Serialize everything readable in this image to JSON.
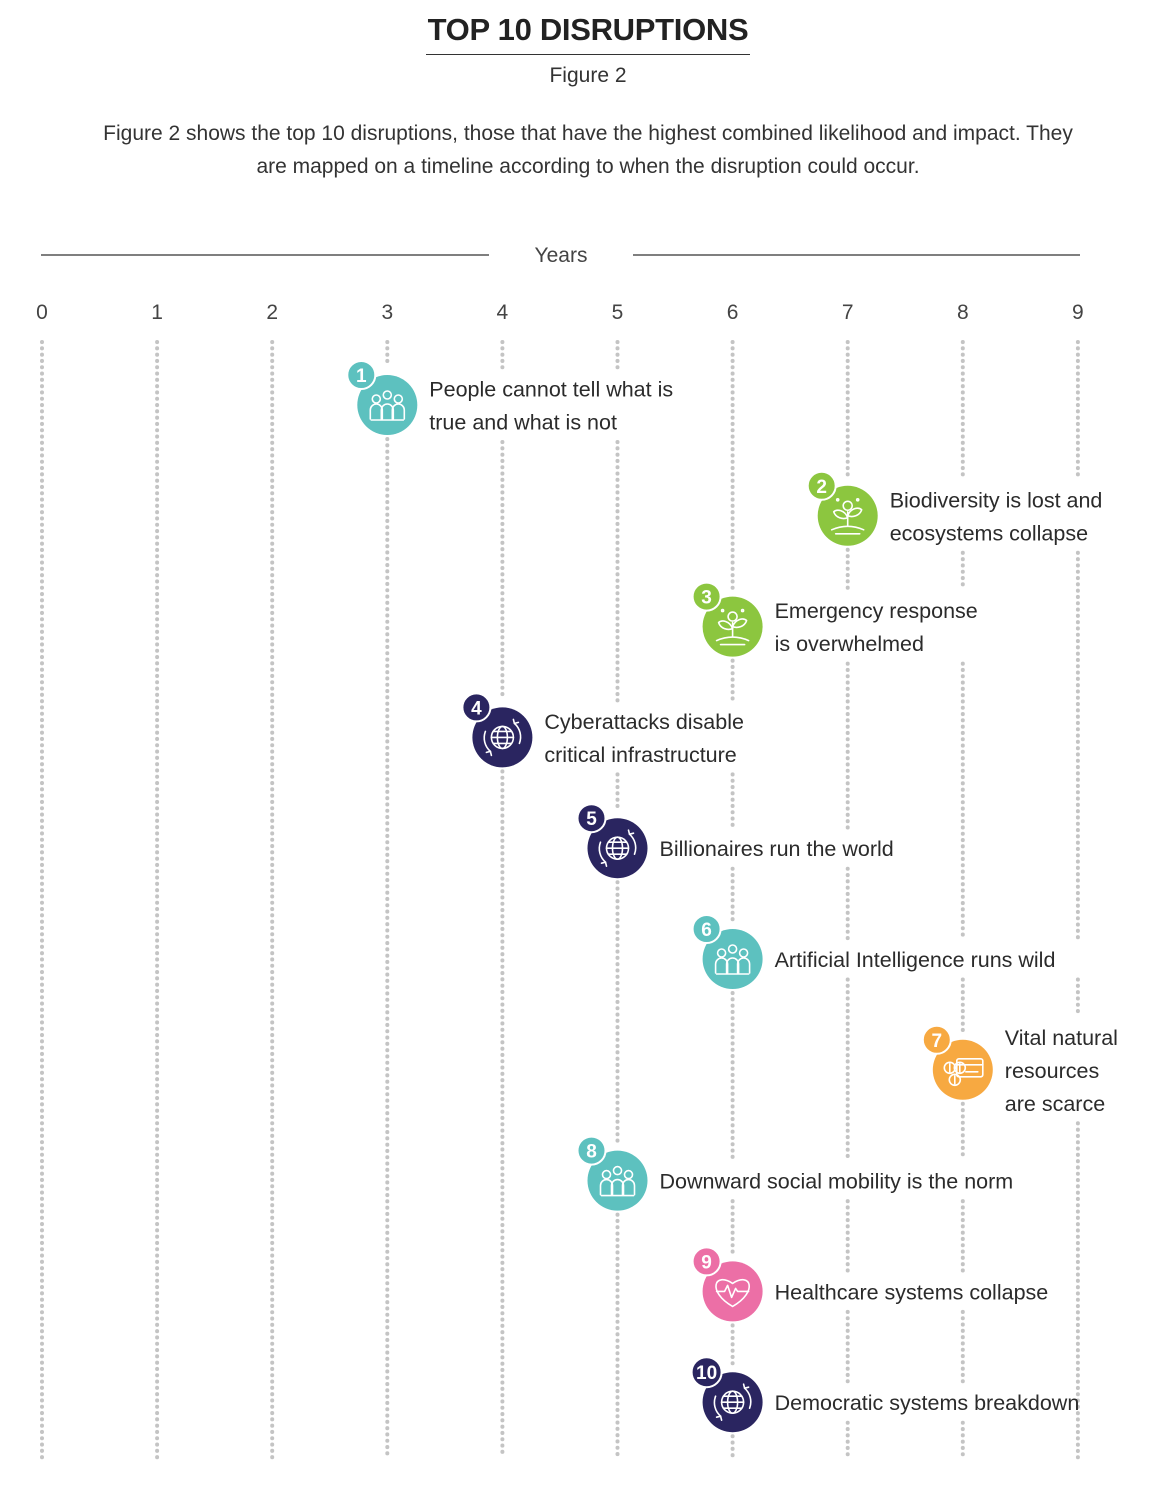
{
  "title": "TOP 10 DISRUPTIONS",
  "subtitle": "Figure 2",
  "description": "Figure 2 shows the top 10 disruptions, those that have the highest combined likelihood and impact. They are mapped on a timeline according to when the disruption could occur.",
  "chart_data": {
    "type": "scatter",
    "xlabel": "Years",
    "ticks": [
      "0",
      "1",
      "2",
      "3",
      "4",
      "5",
      "6",
      "7",
      "8",
      "9"
    ],
    "xlim": [
      0,
      9
    ],
    "grid": true,
    "colors": {
      "teal": "#5dc1bf",
      "green": "#8cc63f",
      "navy": "#2a2560",
      "orange": "#f7a941",
      "pink": "#ec6fa6"
    },
    "points": [
      {
        "rank": "1",
        "year": 3,
        "label": [
          "People cannot tell what is",
          "true and what is not"
        ],
        "color": "teal",
        "icon": "people-icon"
      },
      {
        "rank": "2",
        "year": 7,
        "label": [
          "Biodiversity is lost and",
          "ecosystems collapse"
        ],
        "color": "green",
        "icon": "plant-icon"
      },
      {
        "rank": "3",
        "year": 6,
        "label": [
          "Emergency response",
          "is overwhelmed"
        ],
        "color": "green",
        "icon": "plant-icon"
      },
      {
        "rank": "4",
        "year": 4,
        "label": [
          "Cyberattacks disable",
          "critical infrastructure"
        ],
        "color": "navy",
        "icon": "globe-icon"
      },
      {
        "rank": "5",
        "year": 5,
        "label": [
          "Billionaires run the world"
        ],
        "color": "navy",
        "icon": "globe-icon"
      },
      {
        "rank": "6",
        "year": 6,
        "label": [
          "Artificial Intelligence runs wild"
        ],
        "color": "teal",
        "icon": "people-icon"
      },
      {
        "rank": "7",
        "year": 8,
        "label": [
          "Vital natural",
          "resources",
          "are scarce"
        ],
        "color": "orange",
        "icon": "money-card-icon"
      },
      {
        "rank": "8",
        "year": 5,
        "label": [
          "Downward social mobility is the norm"
        ],
        "color": "teal",
        "icon": "people-icon"
      },
      {
        "rank": "9",
        "year": 6,
        "label": [
          "Healthcare systems collapse"
        ],
        "color": "pink",
        "icon": "heart-pulse-icon"
      },
      {
        "rank": "10",
        "year": 6,
        "label": [
          "Democratic systems breakdown"
        ],
        "color": "navy",
        "icon": "globe-icon"
      }
    ]
  }
}
